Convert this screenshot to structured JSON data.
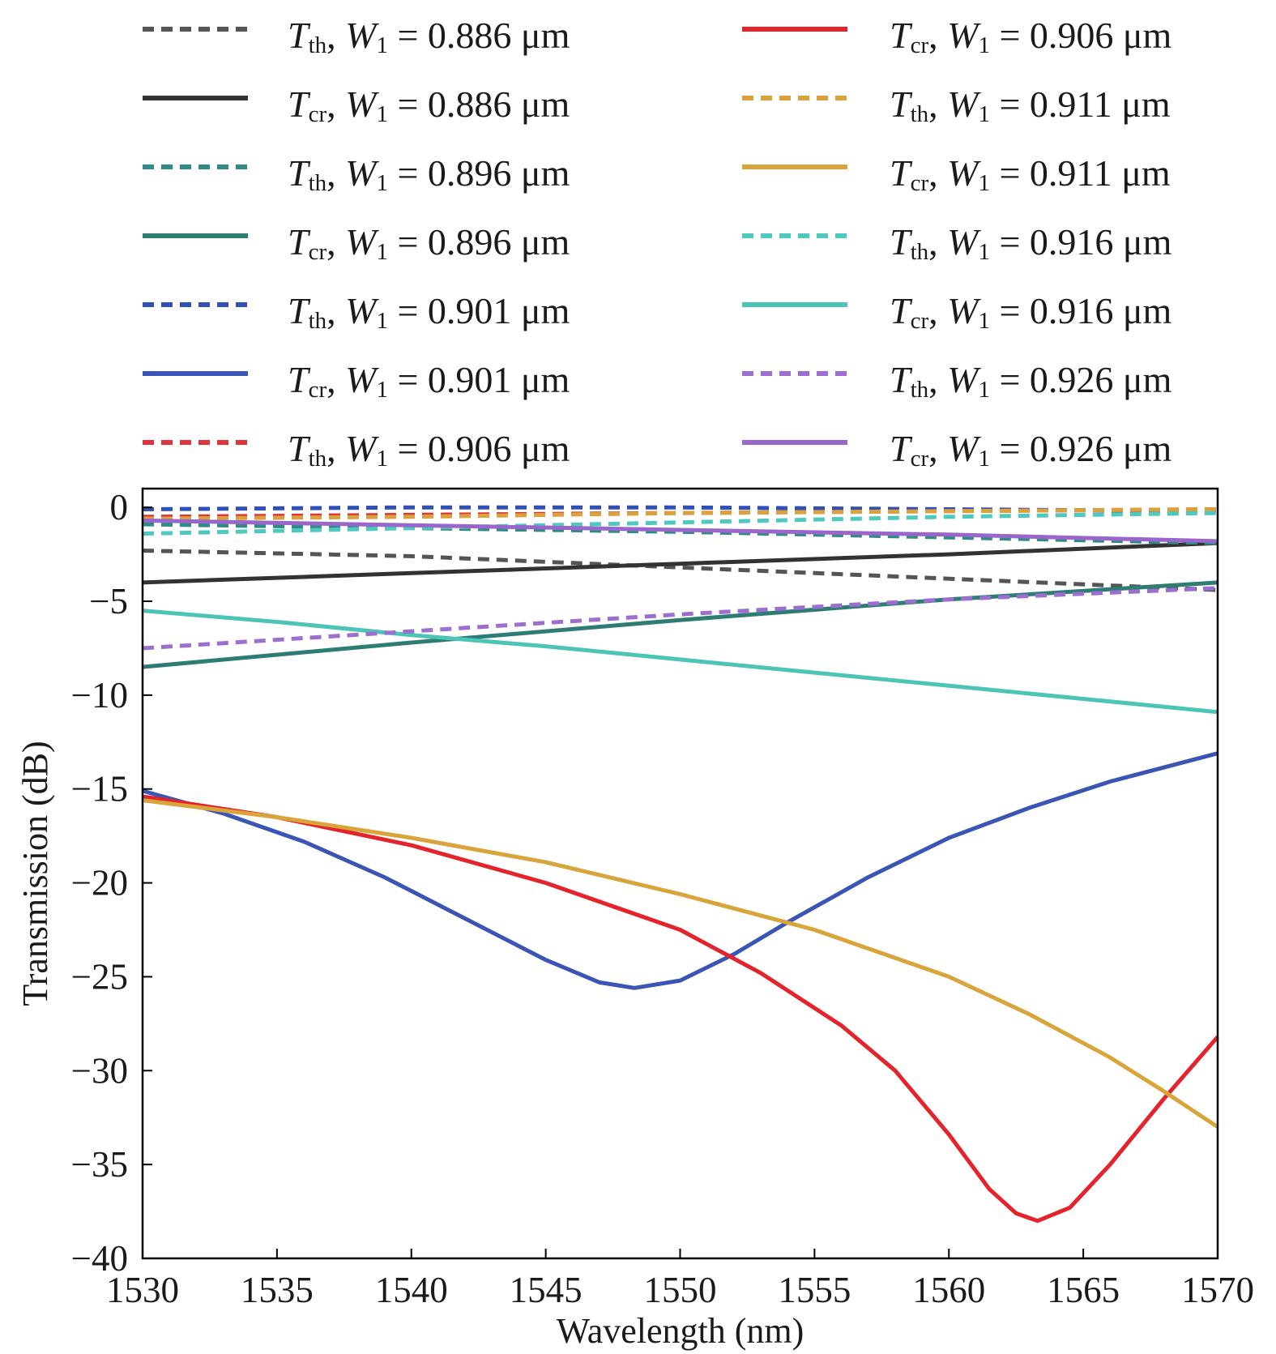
{
  "chart_data": {
    "type": "line",
    "title": "",
    "xlabel": "Wavelength (nm)",
    "ylabel": "Transmission (dB)",
    "xlim": [
      1530,
      1570
    ],
    "ylim": [
      -40,
      1
    ],
    "xticks": [
      1530,
      1535,
      1540,
      1545,
      1550,
      1555,
      1560,
      1565,
      1570
    ],
    "yticks": [
      0,
      -5,
      -10,
      -15,
      -20,
      -25,
      -30,
      -35,
      -40
    ],
    "ytick_labels": [
      "0",
      "−5",
      "−10",
      "−15",
      "−20",
      "−25",
      "−30",
      "−35",
      "−40"
    ],
    "grid": false,
    "legend_position": "above plot, two columns",
    "series": [
      {
        "name": "Tth, W1 = 0.886 μm",
        "T": "T",
        "sub": "th",
        "rest": ", ",
        "W": "W",
        "wsub": "1",
        "value": " = 0.886 μm",
        "color": "#555555",
        "style": "dashed",
        "x": [
          1530,
          1540,
          1550,
          1560,
          1570
        ],
        "y": [
          -2.3,
          -2.6,
          -3.2,
          -3.8,
          -4.4
        ]
      },
      {
        "name": "Tcr, W1 = 0.886 μm",
        "T": "T",
        "sub": "cr",
        "rest": ", ",
        "W": "W",
        "wsub": "1",
        "value": " = 0.886 μm",
        "color": "#333333",
        "style": "solid",
        "x": [
          1530,
          1540,
          1550,
          1560,
          1570
        ],
        "y": [
          -4.0,
          -3.5,
          -3.0,
          -2.5,
          -1.9
        ]
      },
      {
        "name": "Tth, W1 = 0.896 μm",
        "T": "T",
        "sub": "th",
        "rest": ", ",
        "W": "W",
        "wsub": "1",
        "value": " = 0.896 μm",
        "color": "#2e8b85",
        "style": "dashed",
        "x": [
          1530,
          1540,
          1550,
          1560,
          1570
        ],
        "y": [
          -0.9,
          -1.1,
          -1.3,
          -1.6,
          -1.9
        ]
      },
      {
        "name": "Tcr, W1 = 0.896 μm",
        "T": "T",
        "sub": "cr",
        "rest": ", ",
        "W": "W",
        "wsub": "1",
        "value": " = 0.896 μm",
        "color": "#2e7d74",
        "style": "solid",
        "x": [
          1530,
          1540,
          1550,
          1560,
          1570
        ],
        "y": [
          -8.5,
          -7.2,
          -6.0,
          -4.9,
          -4.0
        ]
      },
      {
        "name": "Tth, W1 = 0.901 μm",
        "T": "T",
        "sub": "th",
        "rest": ", ",
        "W": "W",
        "wsub": "1",
        "value": " = 0.901 μm",
        "color": "#3050b8",
        "style": "dashed",
        "x": [
          1530,
          1540,
          1550,
          1560,
          1570
        ],
        "y": [
          -0.1,
          0.0,
          0.0,
          -0.1,
          -0.2
        ]
      },
      {
        "name": "Tcr, W1 = 0.901 μm",
        "T": "T",
        "sub": "cr",
        "rest": ", ",
        "W": "W",
        "wsub": "1",
        "value": " = 0.901 μm",
        "color": "#3a55b5",
        "style": "solid",
        "x": [
          1530,
          1533,
          1536,
          1539,
          1542,
          1545,
          1547,
          1548.3,
          1550,
          1552,
          1554,
          1557,
          1560,
          1563,
          1566,
          1570
        ],
        "y": [
          -15.1,
          -16.3,
          -17.8,
          -19.7,
          -21.9,
          -24.1,
          -25.3,
          -25.6,
          -25.2,
          -23.8,
          -22.1,
          -19.7,
          -17.6,
          -16.0,
          -14.6,
          -13.1
        ]
      },
      {
        "name": "Tth, W1 = 0.906 μm",
        "T": "T",
        "sub": "th",
        "rest": ", ",
        "W": "W",
        "wsub": "1",
        "value": " = 0.906 μm",
        "color": "#e0333a",
        "style": "dashed",
        "x": [
          1530,
          1540,
          1550,
          1560,
          1570
        ],
        "y": [
          -0.5,
          -0.4,
          -0.3,
          -0.2,
          -0.1
        ]
      },
      {
        "name": "Tcr, W1 = 0.906 μm",
        "T": "T",
        "sub": "cr",
        "rest": ", ",
        "W": "W",
        "wsub": "1",
        "value": " = 0.906 μm",
        "color": "#e5232b",
        "style": "solid",
        "x": [
          1530,
          1535,
          1540,
          1545,
          1550,
          1553,
          1556,
          1558,
          1560,
          1561.5,
          1562.5,
          1563.3,
          1564.5,
          1566,
          1568,
          1570
        ],
        "y": [
          -15.4,
          -16.5,
          -18.0,
          -20.0,
          -22.5,
          -24.8,
          -27.6,
          -30.0,
          -33.4,
          -36.3,
          -37.6,
          -38.0,
          -37.3,
          -35.0,
          -31.5,
          -28.2
        ]
      },
      {
        "name": "Tth, W1 = 0.911 μm",
        "T": "T",
        "sub": "th",
        "rest": ", ",
        "W": "W",
        "wsub": "1",
        "value": " = 0.911 μm",
        "color": "#d9a23c",
        "style": "dashed",
        "x": [
          1530,
          1540,
          1550,
          1560,
          1570
        ],
        "y": [
          -0.6,
          -0.5,
          -0.3,
          -0.2,
          -0.1
        ]
      },
      {
        "name": "Tcr, W1 = 0.911 μm",
        "T": "T",
        "sub": "cr",
        "rest": ", ",
        "W": "W",
        "wsub": "1",
        "value": " = 0.911 μm",
        "color": "#d9a43a",
        "style": "solid",
        "x": [
          1530,
          1535,
          1540,
          1545,
          1550,
          1555,
          1560,
          1563,
          1566,
          1568,
          1570
        ],
        "y": [
          -15.6,
          -16.5,
          -17.6,
          -18.9,
          -20.6,
          -22.5,
          -25.0,
          -27.0,
          -29.3,
          -31.1,
          -33.0
        ]
      },
      {
        "name": "Tth, W1 = 0.916 μm",
        "T": "T",
        "sub": "th",
        "rest": ", ",
        "W": "W",
        "wsub": "1",
        "value": " = 0.916 μm",
        "color": "#4dc9bd",
        "style": "dashed",
        "x": [
          1530,
          1540,
          1550,
          1560,
          1570
        ],
        "y": [
          -1.4,
          -1.1,
          -0.8,
          -0.5,
          -0.3
        ]
      },
      {
        "name": "Tcr, W1 = 0.916 μm",
        "T": "T",
        "sub": "cr",
        "rest": ", ",
        "W": "W",
        "wsub": "1",
        "value": " = 0.916 μm",
        "color": "#4cc4b8",
        "style": "solid",
        "x": [
          1530,
          1535,
          1540,
          1545,
          1550,
          1555,
          1560,
          1565,
          1570
        ],
        "y": [
          -5.5,
          -6.1,
          -6.8,
          -7.4,
          -8.1,
          -8.8,
          -9.5,
          -10.2,
          -10.9
        ]
      },
      {
        "name": "Tth, W1 = 0.926 μm",
        "T": "T",
        "sub": "th",
        "rest": ", ",
        "W": "W",
        "wsub": "1",
        "value": " = 0.926 μm",
        "color": "#9b6fd0",
        "style": "dashed",
        "x": [
          1530,
          1540,
          1550,
          1560,
          1570
        ],
        "y": [
          -7.5,
          -6.6,
          -5.7,
          -4.9,
          -4.3
        ]
      },
      {
        "name": "Tcr, W1 = 0.926 μm",
        "T": "T",
        "sub": "cr",
        "rest": ", ",
        "W": "W",
        "wsub": "1",
        "value": " = 0.926 μm",
        "color": "#9966cc",
        "style": "solid",
        "x": [
          1530,
          1540,
          1550,
          1560,
          1570
        ],
        "y": [
          -0.7,
          -0.95,
          -1.2,
          -1.45,
          -1.8
        ]
      }
    ]
  }
}
